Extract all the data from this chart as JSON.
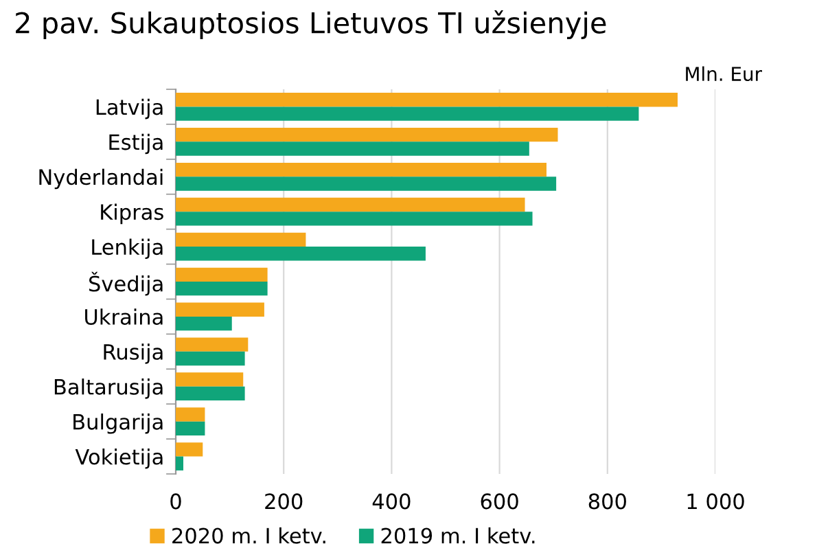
{
  "chart_data": {
    "type": "bar",
    "orientation": "horizontal",
    "title": "2 pav. Sukauptosios Lietuvos TI užsienyje",
    "categories": [
      "Latvija",
      "Estija",
      "Nyderlandai",
      "Kipras",
      "Lenkija",
      "Švedija",
      "Ukraina",
      "Rusija",
      "Baltarusija",
      "Bulgarija",
      "Vokietija"
    ],
    "series": [
      {
        "name": "2020 m. I ketv.",
        "color": "#f5a81c",
        "values": [
          930,
          708,
          687,
          647,
          241,
          170,
          164,
          134,
          125,
          54,
          50
        ]
      },
      {
        "name": "2019 m. I ketv.",
        "color": "#10a57a",
        "values": [
          858,
          655,
          705,
          661,
          463,
          170,
          104,
          128,
          128,
          54,
          14
        ]
      }
    ],
    "xlim": [
      0,
      1000
    ],
    "xticks": [
      0,
      200,
      400,
      600,
      800,
      {
        "value": 1000,
        "label": "1 000"
      }
    ],
    "annotations": [
      "Mln. Eur"
    ],
    "grid": "x",
    "legend": "bottom"
  }
}
